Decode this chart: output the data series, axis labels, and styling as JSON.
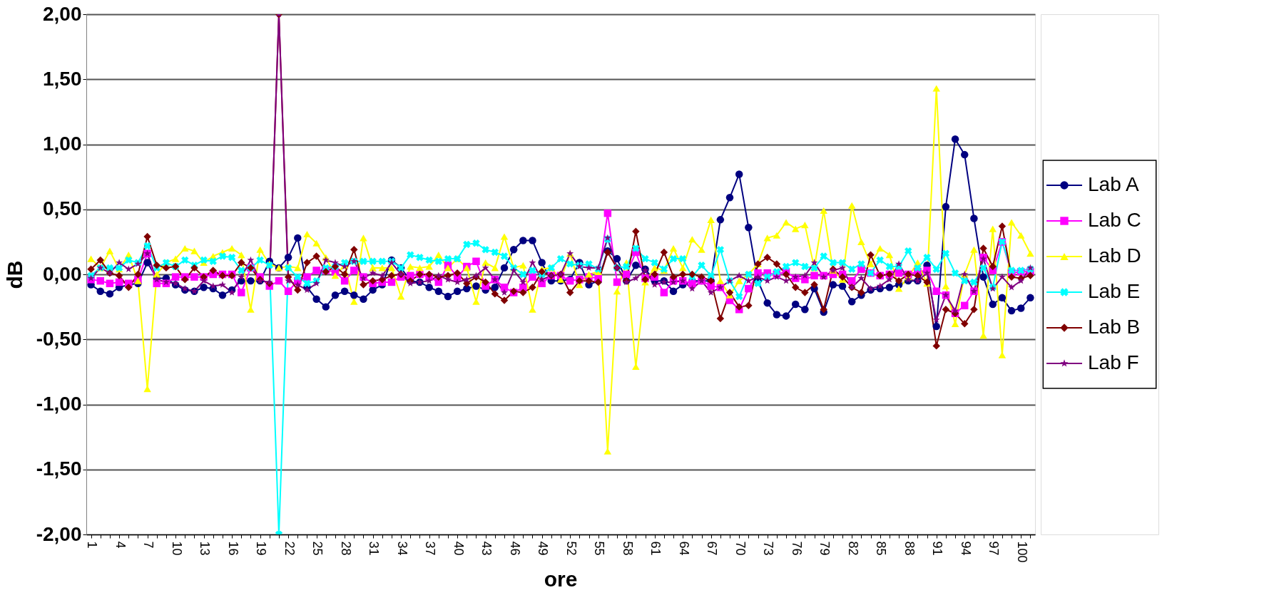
{
  "chart_data": {
    "type": "line",
    "xlabel": "ore",
    "ylabel": "dB",
    "categories": [
      "1",
      null,
      null,
      "4",
      null,
      null,
      "7",
      null,
      null,
      "10",
      null,
      null,
      "13",
      null,
      null,
      "16",
      null,
      null,
      "19",
      null,
      null,
      "22",
      null,
      null,
      "25",
      null,
      null,
      "28",
      null,
      null,
      "31",
      null,
      null,
      "34",
      null,
      null,
      "37",
      null,
      null,
      "40",
      null,
      null,
      "43",
      null,
      null,
      "46",
      null,
      null,
      "49",
      null,
      null,
      "52",
      null,
      null,
      "55",
      null,
      null,
      "58",
      null,
      null,
      "61",
      null,
      null,
      "64",
      null,
      null,
      "67",
      null,
      null,
      "70",
      null,
      null,
      "73",
      null,
      null,
      "76",
      null,
      null,
      "79",
      null,
      null,
      "82",
      null,
      null,
      "85",
      null,
      null,
      "88",
      null,
      null,
      "91",
      null,
      null,
      "94",
      null,
      null,
      "97",
      null,
      null,
      "100",
      null
    ],
    "ylim": [
      -2,
      2
    ],
    "yticks": [
      {
        "value": -2,
        "label": "-2,00"
      },
      {
        "value": -1.5,
        "label": "-1,50"
      },
      {
        "value": -1,
        "label": "-1,00"
      },
      {
        "value": -0.5,
        "label": "-0,50"
      },
      {
        "value": 0,
        "label": "0,00"
      },
      {
        "value": 0.5,
        "label": "0,50"
      },
      {
        "value": 1,
        "label": "1,00"
      },
      {
        "value": 1.5,
        "label": "1,50"
      },
      {
        "value": 2,
        "label": "2,00"
      }
    ],
    "grid": "y",
    "legend": "right",
    "series": [
      {
        "name": "Lab A",
        "color": "#000080",
        "marker": "circle",
        "values": [
          -0.08,
          -0.13,
          -0.15,
          -0.1,
          -0.08,
          -0.07,
          0.09,
          -0.03,
          -0.03,
          -0.08,
          -0.12,
          -0.13,
          -0.1,
          -0.11,
          -0.16,
          -0.12,
          -0.05,
          -0.05,
          -0.05,
          0.1,
          0.05,
          0.13,
          0.28,
          -0.1,
          -0.19,
          -0.25,
          -0.16,
          -0.13,
          -0.16,
          -0.19,
          -0.12,
          -0.08,
          0.11,
          0.05,
          -0.05,
          -0.06,
          -0.1,
          -0.13,
          -0.17,
          -0.13,
          -0.11,
          -0.09,
          -0.12,
          -0.1,
          0.05,
          0.19,
          0.26,
          0.26,
          0.09,
          -0.05,
          -0.05,
          -0.04,
          0.09,
          -0.08,
          -0.05,
          0.18,
          0.12,
          -0.05,
          0.07,
          0.04,
          -0.05,
          -0.05,
          -0.13,
          -0.08,
          -0.05,
          -0.05,
          -0.05,
          0.42,
          0.59,
          0.77,
          0.36,
          -0.05,
          -0.22,
          -0.31,
          -0.32,
          -0.23,
          -0.27,
          -0.11,
          -0.29,
          -0.08,
          -0.09,
          -0.21,
          -0.16,
          -0.12,
          -0.11,
          -0.1,
          -0.08,
          -0.05,
          -0.05,
          0.07,
          -0.4,
          0.52,
          1.04,
          0.92,
          0.43,
          -0.02,
          -0.23,
          -0.18,
          -0.28,
          -0.26,
          -0.18
        ]
      },
      {
        "name": "Lab C",
        "color": "#ff00ff",
        "marker": "square",
        "values": [
          -0.04,
          -0.05,
          -0.07,
          -0.06,
          -0.07,
          -0.04,
          0.16,
          -0.07,
          -0.07,
          -0.02,
          -0.02,
          -0.02,
          -0.02,
          0,
          0,
          0,
          -0.14,
          0.05,
          -0.02,
          -0.09,
          -0.05,
          -0.13,
          -0.05,
          -0.02,
          0.03,
          0.03,
          0.02,
          -0.05,
          0.03,
          -0.02,
          -0.07,
          -0.06,
          -0.06,
          -0.02,
          -0.01,
          0,
          -0.02,
          -0.06,
          0.07,
          -0.02,
          0.06,
          0.1,
          -0.09,
          -0.04,
          -0.1,
          -0.14,
          -0.1,
          -0.02,
          -0.07,
          -0.01,
          -0.01,
          -0.05,
          -0.04,
          -0.02,
          -0.03,
          0.47,
          -0.06,
          0,
          0.17,
          -0.03,
          -0.02,
          -0.14,
          -0.05,
          -0.05,
          -0.07,
          -0.05,
          -0.09,
          -0.1,
          -0.2,
          -0.27,
          -0.11,
          0.01,
          0.01,
          0,
          0.02,
          -0.03,
          -0.04,
          -0.01,
          -0.01,
          0,
          0,
          -0.05,
          0.04,
          0.01,
          -0.01,
          0,
          0.01,
          0,
          0.02,
          0.03,
          -0.13,
          -0.16,
          -0.3,
          -0.24,
          -0.13,
          0.13,
          0.03,
          0.25,
          0.01,
          0.02,
          0.02
        ]
      },
      {
        "name": "Lab D",
        "color": "#ffff00",
        "marker": "triangle",
        "values": [
          0.12,
          0.05,
          0.18,
          0.04,
          0.15,
          -0.05,
          -0.88,
          0,
          0.09,
          0.12,
          0.2,
          0.18,
          0.09,
          0.14,
          0.17,
          0.2,
          0.15,
          -0.27,
          0.19,
          0.08,
          0.05,
          0.06,
          0.05,
          0.31,
          0.24,
          0.13,
          -0.01,
          0.07,
          -0.21,
          0.28,
          0.05,
          0.05,
          0.05,
          -0.17,
          0.06,
          0.05,
          0.06,
          0.15,
          0.05,
          0.12,
          0.05,
          -0.21,
          0.09,
          0.05,
          0.29,
          0.05,
          0.07,
          -0.27,
          0.04,
          0.05,
          -0.04,
          0.16,
          -0.08,
          0,
          0.02,
          -1.36,
          -0.13,
          0.09,
          -0.71,
          -0.06,
          0.05,
          0.03,
          0.2,
          0.05,
          0.27,
          0.19,
          0.42,
          -0.05,
          -0.16,
          -0.05,
          0,
          0.08,
          0.28,
          0.3,
          0.4,
          0.35,
          0.38,
          0.05,
          0.49,
          0.03,
          -0.04,
          0.53,
          0.25,
          0.08,
          0.2,
          0.15,
          -0.11,
          -0.02,
          0.09,
          -0.07,
          1.43,
          -0.09,
          -0.38,
          0,
          0.19,
          -0.47,
          0.35,
          -0.62,
          0.4,
          0.3,
          0.16
        ]
      },
      {
        "name": "Lab E",
        "color": "#00ffff",
        "marker": "cross",
        "values": [
          -0.01,
          0.05,
          0.05,
          0.05,
          0.11,
          0.09,
          0.22,
          0.05,
          0.09,
          0.06,
          0.11,
          0.07,
          0.11,
          0.1,
          0.14,
          0.13,
          0.03,
          0.05,
          0.11,
          0.07,
          -2,
          0.05,
          -0.02,
          -0.07,
          -0.05,
          0.05,
          0.06,
          0.09,
          0.1,
          0.1,
          0.1,
          0.1,
          0.1,
          0.05,
          0.15,
          0.13,
          0.11,
          0.1,
          0.12,
          0.12,
          0.23,
          0.24,
          0.19,
          0.17,
          0.14,
          0.05,
          0,
          0.03,
          0,
          0.05,
          0.12,
          0.08,
          0.07,
          0.08,
          0.04,
          0.27,
          0.05,
          0.06,
          0.2,
          0.12,
          0.09,
          0.04,
          0.12,
          0.12,
          -0.02,
          0.07,
          -0.01,
          0.19,
          -0.05,
          -0.17,
          0,
          -0.07,
          -0.02,
          0.02,
          0.06,
          0.09,
          0.06,
          0.05,
          0.14,
          0.09,
          0.09,
          0.04,
          0.08,
          0.01,
          0.11,
          0.06,
          0.06,
          0.18,
          0.05,
          0.13,
          0.04,
          0.16,
          0.01,
          -0.05,
          -0.06,
          0.05,
          -0.1,
          0.25,
          0.03,
          0.03,
          0.04
        ]
      },
      {
        "name": "Lab B",
        "color": "#800000",
        "marker": "diamond",
        "values": [
          0.04,
          0.11,
          0.01,
          -0.01,
          -0.1,
          0,
          0.29,
          0.07,
          0.05,
          0.06,
          -0.04,
          0.05,
          -0.02,
          0.03,
          -0.01,
          -0.01,
          0.09,
          0.05,
          -0.04,
          -0.07,
          2,
          -0.02,
          -0.12,
          0.09,
          0.14,
          0.02,
          0.06,
          0,
          0.19,
          -0.08,
          -0.05,
          -0.04,
          -0.01,
          0,
          -0.05,
          0,
          0,
          -0.02,
          -0.01,
          0.01,
          -0.07,
          -0.02,
          -0.06,
          -0.15,
          -0.2,
          -0.13,
          -0.14,
          -0.1,
          0.02,
          -0.01,
          0,
          -0.14,
          -0.05,
          -0.05,
          -0.06,
          0.17,
          0.05,
          -0.05,
          0.33,
          -0.04,
          0,
          0.17,
          -0.02,
          0,
          0,
          -0.02,
          -0.05,
          -0.34,
          -0.14,
          -0.25,
          -0.24,
          0.08,
          0.13,
          0.08,
          0,
          -0.1,
          -0.14,
          -0.08,
          -0.27,
          0.04,
          -0.02,
          -0.1,
          -0.14,
          0.15,
          -0.01,
          0,
          -0.05,
          0,
          -0.01,
          -0.06,
          -0.55,
          -0.27,
          -0.3,
          -0.38,
          -0.27,
          0.2,
          0.06,
          0.37,
          -0.02,
          -0.03,
          -0.01
        ]
      },
      {
        "name": "Lab F",
        "color": "#800080",
        "marker": "star",
        "values": [
          -0.03,
          0.05,
          0.01,
          0.09,
          0.04,
          0.08,
          0.16,
          -0.04,
          -0.06,
          -0.07,
          -0.11,
          -0.13,
          -0.05,
          -0.09,
          -0.08,
          -0.14,
          -0.02,
          0.11,
          -0.05,
          -0.06,
          2,
          -0.05,
          -0.08,
          -0.12,
          -0.07,
          0.11,
          0.09,
          0.06,
          0.1,
          -0.03,
          0.01,
          -0.01,
          0.09,
          0,
          -0.07,
          -0.06,
          -0.05,
          -0.01,
          -0.04,
          -0.06,
          -0.04,
          -0.01,
          0.05,
          -0.04,
          -0.14,
          0.03,
          -0.06,
          0.09,
          -0.04,
          -0.01,
          0,
          0.16,
          0.06,
          0.05,
          0.05,
          0.28,
          0.05,
          -0.06,
          -0.03,
          0.03,
          -0.08,
          -0.06,
          -0.06,
          -0.05,
          -0.11,
          -0.05,
          -0.14,
          -0.1,
          -0.05,
          -0.01,
          -0.05,
          -0.02,
          -0.05,
          -0.02,
          -0.05,
          -0.02,
          -0.01,
          0.09,
          -0.02,
          0.03,
          0.05,
          -0.1,
          -0.03,
          -0.11,
          -0.09,
          -0.04,
          0.08,
          -0.04,
          -0.05,
          0.01,
          -0.35,
          -0.16,
          -0.28,
          0,
          -0.13,
          0.12,
          -0.11,
          -0.02,
          -0.1,
          -0.05,
          0.05
        ]
      }
    ]
  }
}
